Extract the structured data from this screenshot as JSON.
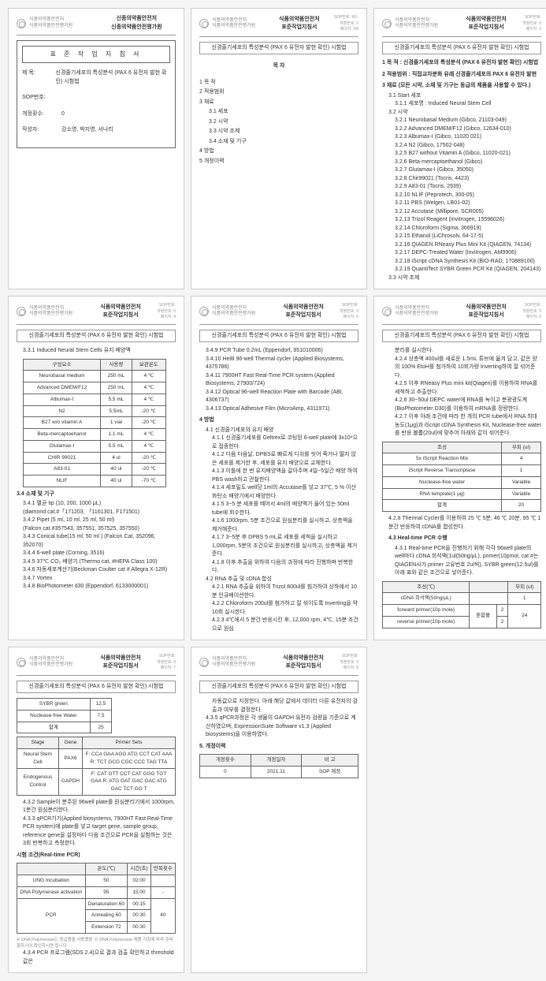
{
  "header": {
    "org_line1": "식품의약품안전처",
    "org_line2": "식품의약품안전평가원",
    "doc_title": "신종의약품안전처",
    "doc_subtitle": "신종의약품안전평가원",
    "sop_title": "신경줄기세포의 특성분석 (PAX 6 유전자 발현 확인) 시험법",
    "right_info": "SOP번호:\n개정번호:\n페이지:"
  },
  "page1": {
    "box_title": "표 준 작 업 지 침 서",
    "fields": {
      "subject": "신경줄기세포의 특성분석 (PAX 6 유전자 발현 확인) 시험법",
      "sop_no_label": "SOP번호:",
      "rev_label": "개정횟수:",
      "rev_val": "0",
      "author_label": "작성자:",
      "author_val": "강소영, 박지영, 서나리"
    }
  },
  "page2": {
    "title": "목 차",
    "items": [
      "1 목 적",
      "2 적용범위",
      "3 재료",
      "4 방법",
      "5 개정이력"
    ],
    "subs": {
      "3": [
        "3.1 세포",
        "3.2 시약",
        "3.3 시약 조제",
        "3.4 소재 및 기구"
      ]
    }
  },
  "page3": {
    "sec1_h": "1 목 적 : 신경줄기세포의 특성분석 (PAX 6 유전자 발현 확인) 시험법",
    "sec2_h": "2 적용범위 : 직접교차분화 유래 신경줄기세포의 PAX 6 유전자 발현",
    "sec3_h": "3 재료 (모든 시약, 소재 및 기구는 동급의 제품을 사용할 수 있다.)",
    "s31": "3.1 Start 세포",
    "s311": "3.1.1 세포명 : Induced Neural Stem Cell",
    "s32": "3.2 시약",
    "reagents": [
      "3.2.1 Neurobasal Medium (Gibco, 21103-049)",
      "3.2.2 Advanced DMEM/F12 (Gibco, 12634-010)",
      "3.2.3 Albumax-I (Gibco, 11020 021)",
      "3.2.4 N2 (Gibco, 17502-048)",
      "3.2.5 B27 without Vitamin A (Gibco, 11020-021)",
      "3.2.6 Beta-mercaptoethanol (Gibco)",
      "3.2.7 Glutamax-I (Gibco, 35050)",
      "3.2.8 Chir99021 (Tocris, 4423)",
      "3.2.9 A83-01 (Tocris, 2939)",
      "3.2.10 NLIF (Peprotech, 300-05)",
      "3.2.11 PBS (Welgen, LB01-02)",
      "3.2.12 Accutase (Millipore, SCR005)",
      "3.2.13 Trizol Reagent (Invitrogen, 15596026)",
      "3.2.14 Chloroform (Sigma, 366919)",
      "3.2.15 Ethanol (LiChrosolv, 64-17-5)",
      "3.2.16 QIAGEN RNeasy Plus Mini Kit (QIAGEN, 74134)",
      "3.2.17 DEPC-Treated Water (Invitrogen, AM9906)",
      "3.2.18 iScript cDNA Synthesis Kit (BIO-RAD, 170889100)",
      "3.2.19 QuantiTect SYBR Green PCR Kit (QIAGEN, 204143)"
    ],
    "s33": "3.3 시약 조제"
  },
  "page4": {
    "s331": "3.3.1 Induced Neural Stem Cells 유지 배양액",
    "table1": {
      "headers": [
        "구성요소",
        "사용량",
        "보관온도"
      ],
      "rows": [
        [
          "Neurobasal medium",
          "250 mL",
          "4 ℃"
        ],
        [
          "Advanced DMEM/F12",
          "250 mL",
          "4 ℃"
        ],
        [
          "Albumax-I",
          "5.5 mL",
          "4 ℃"
        ],
        [
          "N2",
          "5.5mL",
          "-20 ℃"
        ],
        [
          "B27 w/o vitamin A",
          "1 vial",
          "-20 ℃"
        ],
        [
          "Beta-mercaptoehanol",
          "1.1 mL",
          "4 ℃"
        ],
        [
          "Glutamax-I",
          "5.5 mL",
          "4 ℃"
        ],
        [
          "CHIR 99021",
          "4 ul",
          "-20 ℃"
        ],
        [
          "A83-01",
          "40 ul",
          "-20 ℃"
        ],
        [
          "NLIF",
          "40 ul",
          "-70 ℃"
        ]
      ]
    },
    "s34": "3.4 소재 및 기구",
    "items34": [
      "3.4.1 멸균 tip (10, 200, 1000 μL)",
      "  (diamond cat.#「171203, 「1161301, F171501)",
      "3.4.2 Pipet (5 ml, 10 ml, 25 ml, 50 ml)",
      "  (Falcon cat.#357543, 357551, 357525, 357550)",
      "3.4.3 Conical tube(15 ml, 50 ml ) (Falcon Cat, 352096, 352070)",
      "3.4.4 6-well plate (Corning, 3516)",
      "3.4.5 37℃ CO₂ 배양기 (Thermo cat, #HEPA Class 100)",
      "3.4.6 자동세포계산기(Beckman Coulter cat # Allegra X-12R)",
      "3.4.7 Vortex",
      "3.4.8 BioPhotometer d30 (Eppendorf, 6133000001)"
    ]
  },
  "page5": {
    "items_top": [
      "3.4.9 PCR Tube 0.2mL (Eppendorf, 951010006)",
      "3.4.10 Heilli 96-well Thermal cycler (Applied Biosystems, 4375786)",
      "3.4.11 7900HT Fast Real-Time PCR system (Applied Biosystems, 27900/724)",
      "3.4.12 Optical 96-well Reaction Plate with Barcode (ABI, 4306737)",
      "3.4.13 Optical Adhesive Film (MicroAmp, 4311971)"
    ],
    "s4": "4 방법",
    "s41": "4.1 신경줄기세포의 유지 배양",
    "items41": [
      "4.1.1 신경줄기세포를 Geltrex로 코팅된 6-well plate에 3x10⁴으로 접종한다.",
      "4.1.2 다음 다음날, DPBS로 빠르게 디쉬를 씻어 죽거나 떨지 않은 세포를 제거한 후, 세포를 유지 배양으로 교체한다.",
      "4.1.3 이틀에 한 번 유지배양액을 갈아주며 4일~5일간 배양 하여 PBS wash하고 관찰한다.",
      "4.1.4 세포밀도 well당 1ml의 Accutase를 넣고 37℃, 5 % 이산화탄소 배양기에서 배양한다.",
      "4.1.5 3~5 분 세포를 떼어서 4ml의 배양액가 들어 있는 50ml tube에 회수한다.",
      "4.1.6 1000rpm, 5분 조건으로 원심분리를 실시하고, 상층액을 제거해준다.",
      "4.1.7 3~5분 후 DPBS 5 mL로 세포를 세척을 실시하고 1,000rpm, 5분의 조건으로 원심분리를 실시하고, 상층액을 제거준다.",
      "4.1.8 이후 추출을 위하여 다음의 과정에 따라 진행하며 반복한다."
    ],
    "s42": "4.2 RNA 추출 및 cDNA 합성",
    "items42": [
      "4.2.1 RNA 추출을 위하여 Trizol 800ul를 침가하여 상하에서 10분 인큐베이션한다.",
      "4.2.2 Chloroform 200ul를 첨가하고 잘 섞이도록 Inverting을 약 10회 실시한다.",
      "4.2.3 4℃에서 5 분간 반응시킨 후, 12,000 rpm, 4℃, 15분 조건으로 원심"
    ]
  },
  "page6": {
    "items_cont": [
      "분리를 실시한다.",
      "4.2.4 상층액 400ul를 새로운 1.5mL 튜브에 옮겨 담고, 같은 양의 100% EtoH를 첨가하여 10회가량 Inverting하여 잘 섞어준다.",
      "4.2.5 이후 RNeasy Plus mini kit(Qiagen)를 이용하여 RNA를 세척하고 추출한다.",
      "4.2.6 30~50ul DEPC water에 RNA를 녹이고 분광광도계(BioPhotometer D30)를 이용하여 mRNA를 정량한다.",
      "4.2.7 이후 아래 조건에 따라 한 개의 PCR tube에서 RNA 최대농도(1μg)과 iScript cDNA Synthesis Kit, Nuclease-free water를 반응 볼륨(20ul)에 맞추어 아래와 같이 섞어준다."
    ],
    "table_iscript": {
      "headers": [
        "조성",
        "부피 (ul)"
      ],
      "rows": [
        [
          "5x iScript Reaction Mix",
          "4"
        ],
        [
          "iScript Reverse Transcriptase",
          "1"
        ],
        [
          "Nuclease-free water",
          "Variable"
        ],
        [
          "RNA template(1 μg)",
          "Variable"
        ],
        [
          "합계",
          "20"
        ]
      ]
    },
    "s428": "4.2.8 Thermal Cycler를 이용하여 25 ℃ 5분, 46 ℃ 20분, 95 ℃ 1분간 반응하여 cDNA를 합성한다.",
    "s43": "4.3 Heal-time PCR 수행",
    "s431": "4.3.1 Real-time PCR을 진행하기 위해 각각 96well plate의 well마다 cDNA 희석액(1ul(50ng/μL), primer(10pmol, cat #는 QIAGEN사가 primer 고유번호 2ul씩), SYBR green(12.5ul)를 아래 표와 같은 조건으로 넣어준다.",
    "table_pcr1": {
      "headers": [
        "조성(℃)",
        "",
        "",
        "부피 (ul)"
      ],
      "rows": [
        [
          "cDNA 희석액(50ng/μL)",
          "",
          "",
          "1"
        ],
        [
          "forward primer(10p mole)",
          "혼합물",
          "2",
          "24(rowspan)"
        ],
        [
          "reverse primer(10p mole)",
          "",
          "2",
          ""
        ]
      ]
    }
  },
  "page7": {
    "table_sybr": {
      "rows": [
        [
          "SYBR green",
          "12.5"
        ],
        [
          "Nuclease-free Water",
          "7.5"
        ],
        [
          "합계",
          "25"
        ]
      ]
    },
    "table_primer": {
      "headers": [
        "Stage",
        "Gene",
        "Primer Sets"
      ],
      "rows": [
        [
          "Neural Stem Cell",
          "PAX6",
          "F: CCA GAA AGG ATG CCT CAT AAA\nR: TCT GCG CGC CCC TAG TTA"
        ],
        [
          "Endogenous Control",
          "GAPDH",
          "F: CAT GTT CCT CAT GGG TGT GAA\nR: ATG GAT GAC GAC ATG GAC TCT GG T"
        ]
      ]
    },
    "s432": "4.3.2 Sample이 분주된 96well plate를 원심분리기에서 1000rpm, 1분간 원심분리한다.",
    "s433": "4.3.3 qPCR기기(Applied biosystems, 7900HT Fast Real-Time PCR system)에 plate를 넣고 target gene, sample group, reference gene을 설정마다 다음 조건으로 PCR을 실험하는 것은 3회 반복하고 측정한다.",
    "cycle_title": "시험 조건(Real-time PCR)",
    "table_cycle": {
      "headers": [
        "",
        "온도(℃)",
        "시간(초)",
        "반복횟수"
      ],
      "rows": [
        [
          "UNG Incubation",
          "50",
          "02:00",
          ""
        ],
        [
          "DNA Polymerase activation",
          "95",
          "15:00",
          "-"
        ],
        [
          "PCR",
          "Denaturation 60 / Annealing 60 / Extension 72",
          "00:15 / 00:30 / 00:30",
          "40"
        ]
      ],
      "pcr_rows": [
        [
          "Denaturation",
          "60",
          "00:15"
        ],
        [
          "Annealing",
          "60",
          "00:30"
        ],
        [
          "Extension",
          "72",
          "00:30"
        ]
      ],
      "pcr_repeat": "40"
    },
    "foot": "※ DNA Polymerase는 동급품을 사용했음\n※ DNA Polymerase 제품 지침에 따라 준비함하시어 확인하시면 됩니다",
    "s434": "4.3.4 PCR 프로그램(SDS 2.4)으로 결과 검출 확인하고 threshold 값은"
  },
  "page8": {
    "cont": [
      "자동값으로 지정한다. 아래 해당 값에서 데이터 다른 유전자의 검출과 여부를 결정한다.",
      "4.3.5 qPCR과정은 각 생물의 GAPDH 유전자 검량을 기준으로 계산하였으며, ExpressionSuite Software v1.3 (Applied biosystems)을 이용하였다."
    ],
    "s5": "5. 개정이력",
    "table_rev": {
      "headers": [
        "개정횟수",
        "개정일자",
        "비 고"
      ],
      "rows": [
        [
          "0",
          "2021.11",
          "SOP 제정"
        ]
      ]
    }
  }
}
